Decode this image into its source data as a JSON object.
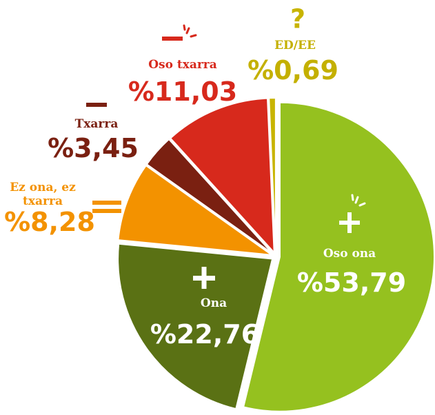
{
  "chart_data": {
    "type": "pie",
    "categories": [
      "Oso ona",
      "Ona",
      "Ez ona, ez txarra",
      "Txarra",
      "Oso txarra",
      "ED/EE"
    ],
    "values": [
      53.79,
      22.76,
      8.28,
      3.45,
      11.03,
      0.69
    ],
    "value_labels": [
      "%53,79",
      "%22,76",
      "%8,28",
      "%3,45",
      "%11,03",
      "%0,69"
    ],
    "colors": [
      "#95c11f",
      "#5a7114",
      "#f39200",
      "#7a2011",
      "#d7291c",
      "#c8b400"
    ]
  }
}
